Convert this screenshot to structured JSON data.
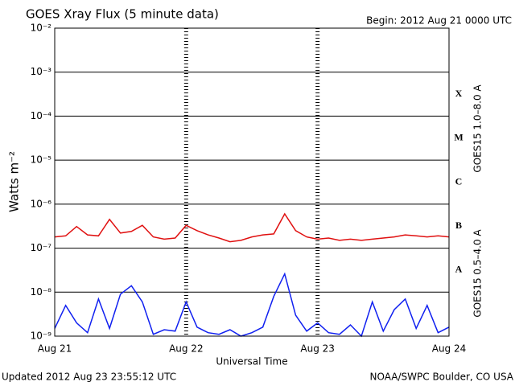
{
  "chart_data": {
    "type": "line",
    "title": "GOES Xray Flux (5 minute data)",
    "subtitle": "Begin:  2012 Aug 21 0000 UTC",
    "y_label": "Watts m⁻²",
    "x_label": "Universal Time",
    "footer_left": "Updated 2012 Aug 23 23:55:12 UTC",
    "footer_right": "NOAA/SWPC Boulder, CO USA",
    "log_scale_y": true,
    "grid": true,
    "x": [
      0,
      2,
      4,
      6,
      8,
      10,
      12,
      14,
      16,
      18,
      20,
      22,
      24,
      26,
      28,
      30,
      32,
      34,
      36,
      38,
      40,
      42,
      44,
      46,
      48,
      50,
      52,
      54,
      56,
      58,
      60,
      62,
      64,
      66,
      68,
      70,
      72
    ],
    "xlim": [
      0,
      72
    ],
    "xticks": [
      {
        "value": 0,
        "label": "Aug 21"
      },
      {
        "value": 24,
        "label": "Aug 22"
      },
      {
        "value": 48,
        "label": "Aug 23"
      },
      {
        "value": 72,
        "label": "Aug 24"
      }
    ],
    "ylim": [
      1e-09,
      0.01
    ],
    "yticks": [
      {
        "value": 1e-09,
        "label": "10⁻⁹"
      },
      {
        "value": 1e-08,
        "label": "10⁻⁸"
      },
      {
        "value": 1e-07,
        "label": "10⁻⁷"
      },
      {
        "value": 1e-06,
        "label": "10⁻⁶"
      },
      {
        "value": 1e-05,
        "label": "10⁻⁵"
      },
      {
        "value": 0.0001,
        "label": "10⁻⁴"
      },
      {
        "value": 0.001,
        "label": "10⁻³"
      },
      {
        "value": 0.01,
        "label": "10⁻²"
      }
    ],
    "flare_classes": [
      {
        "label": "A",
        "value": 1e-08
      },
      {
        "label": "B",
        "value": 1e-07
      },
      {
        "label": "C",
        "value": 1e-06
      },
      {
        "label": "M",
        "value": 1e-05
      },
      {
        "label": "X",
        "value": 0.0001
      }
    ],
    "series": [
      {
        "name": "GOES15 1.0–8.0 A",
        "color": "#e01010",
        "values": [
          1.8e-07,
          1.9e-07,
          3.1e-07,
          2e-07,
          1.9e-07,
          4.5e-07,
          2.2e-07,
          2.4e-07,
          3.3e-07,
          1.8e-07,
          1.6e-07,
          1.7e-07,
          3.3e-07,
          2.5e-07,
          2e-07,
          1.7e-07,
          1.4e-07,
          1.5e-07,
          1.8e-07,
          2e-07,
          2.1e-07,
          6e-07,
          2.5e-07,
          1.8e-07,
          1.6e-07,
          1.7e-07,
          1.5e-07,
          1.6e-07,
          1.5e-07,
          1.6e-07,
          1.7e-07,
          1.8e-07,
          2e-07,
          1.9e-07,
          1.8e-07,
          1.9e-07,
          1.8e-07
        ]
      },
      {
        "name": "GOES15 0.5–4.0 A",
        "color": "#1020f0",
        "values": [
          1.5e-09,
          5e-09,
          2e-09,
          1.2e-09,
          7e-09,
          1.5e-09,
          9e-09,
          1.4e-08,
          6e-09,
          1.1e-09,
          1.4e-09,
          1.3e-09,
          6e-09,
          1.6e-09,
          1.2e-09,
          1.1e-09,
          1.4e-09,
          1e-09,
          1.2e-09,
          1.6e-09,
          8e-09,
          2.6e-08,
          3e-09,
          1.3e-09,
          2e-09,
          1.2e-09,
          1.1e-09,
          1.8e-09,
          1e-09,
          6e-09,
          1.3e-09,
          4e-09,
          7e-09,
          1.5e-09,
          5e-09,
          1.2e-09,
          1.6e-09
        ]
      }
    ]
  }
}
